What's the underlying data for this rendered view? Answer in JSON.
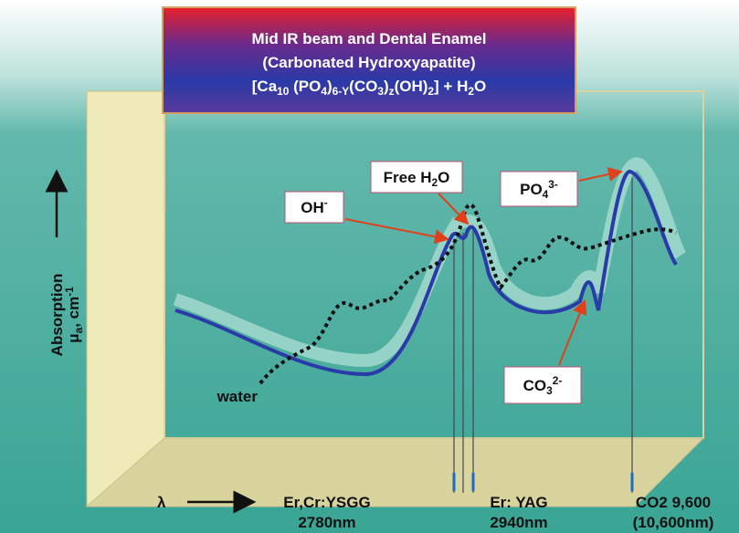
{
  "title": {
    "line1": "Mid IR beam and Dental Enamel",
    "line2": "(Carbonated Hydroxyapatite)",
    "formula": [
      "[Ca",
      "10",
      " (PO",
      "4",
      ")",
      "6-Y",
      "(CO",
      "3",
      ")",
      "z",
      "(OH)",
      "2",
      "] + H",
      "2",
      "O"
    ]
  },
  "labels": {
    "free_water": [
      "Free H",
      "2",
      "O"
    ],
    "hydroxyl": [
      "OH",
      "-"
    ],
    "phosphate": [
      "PO",
      "4",
      "3-"
    ],
    "carbonate": [
      "CO",
      "3",
      "2-"
    ],
    "water": "water"
  },
  "y_axis": {
    "label": "Absorption",
    "unit": [
      "μ",
      "a",
      ", cm",
      "-1"
    ]
  },
  "x_axis": {
    "symbol": "λ",
    "lasers": [
      {
        "name": "Er,Cr:YSGG",
        "wavelength": "2780nm"
      },
      {
        "name": "Er: YAG",
        "wavelength": "2940nm"
      },
      {
        "name": [
          "CO",
          "2",
          " 9,600"
        ],
        "wavelength": "(10,600nm)"
      }
    ]
  }
}
